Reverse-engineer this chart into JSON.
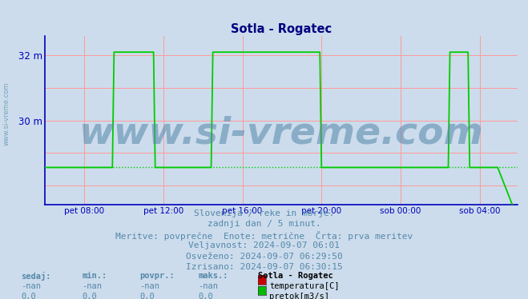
{
  "title": "Sotla - Rogatec",
  "bg_color": "#ccdcec",
  "plot_bg_color": "#ccdcec",
  "title_color": "#000080",
  "axis_color": "#0000bb",
  "grid_color": "#ff9999",
  "yticks": [
    28.0,
    29.0,
    30.0,
    31.0,
    32.0
  ],
  "ytick_labels": [
    "",
    "",
    "30 m",
    "",
    "32 m"
  ],
  "ylim": [
    27.4,
    32.6
  ],
  "xlim": [
    0,
    287
  ],
  "xtick_positions": [
    24,
    72,
    120,
    168,
    216,
    264
  ],
  "xtick_labels": [
    "pet 08:00",
    "pet 12:00",
    "pet 16:00",
    "pet 20:00",
    "sob 00:00",
    "sob 04:00"
  ],
  "line_color": "#00cc00",
  "avg_y": 28.55,
  "high_y": 32.1,
  "low_y": 28.55,
  "watermark_text": "www.si-vreme.com",
  "watermark_color": "#5588aa",
  "watermark_fontsize": 34,
  "subtitle_lines": [
    "Slovenija / reke in morje.",
    "zadnji dan / 5 minut.",
    "Meritve: povprečne  Enote: metrične  Črta: prva meritev",
    "Veljavnost: 2024-09-07 06:01",
    "Osveženo: 2024-09-07 06:29:50",
    "Izrisano: 2024-09-07 06:30:15"
  ],
  "subtitle_color": "#5588aa",
  "subtitle_fontsize": 8,
  "legend_title": "Sotla - Rogatec",
  "legend_items": [
    {
      "label": "temperatura[C]",
      "color": "#cc0000"
    },
    {
      "label": "pretok[m3/s]",
      "color": "#00bb00"
    }
  ],
  "table_headers": [
    "sedaj:",
    "min.:",
    "povpr.:",
    "maks.:"
  ],
  "table_rows": [
    [
      "-nan",
      "-nan",
      "-nan",
      "-nan"
    ],
    [
      "0,0",
      "0,0",
      "0,0",
      "0,0"
    ]
  ],
  "table_color": "#5588aa",
  "side_text": "www.si-vreme.com",
  "side_color": "#5588aa"
}
